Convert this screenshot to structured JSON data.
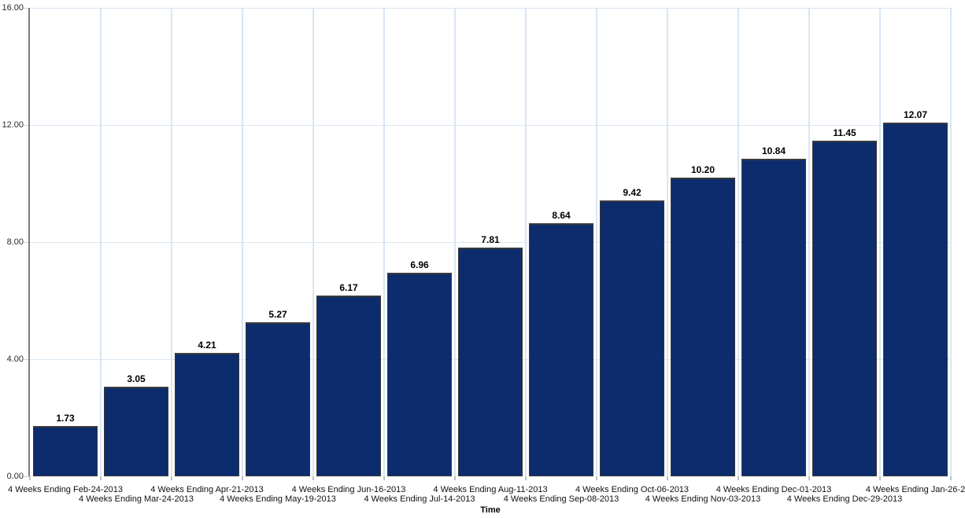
{
  "chart_data": {
    "type": "bar",
    "title": "",
    "xlabel": "Time",
    "ylabel": "",
    "ylim": [
      0,
      16
    ],
    "grid": true,
    "legend": false,
    "y_ticks": [
      "0.00",
      "4.00",
      "8.00",
      "12.00",
      "16.00"
    ],
    "categories": [
      "4 Weeks Ending Feb-24-2013",
      "4 Weeks Ending Mar-24-2013",
      "4 Weeks Ending Apr-21-2013",
      "4 Weeks Ending May-19-2013",
      "4 Weeks Ending Jun-16-2013",
      "4 Weeks Ending Jul-14-2013",
      "4 Weeks Ending Aug-11-2013",
      "4 Weeks Ending Sep-08-2013",
      "4 Weeks Ending Oct-06-2013",
      "4 Weeks Ending Nov-03-2013",
      "4 Weeks Ending Dec-01-2013",
      "4 Weeks Ending Dec-29-2013",
      "4 Weeks Ending Jan-26-2"
    ],
    "values": [
      1.73,
      3.05,
      4.21,
      5.27,
      6.17,
      6.96,
      7.81,
      8.64,
      9.42,
      10.2,
      10.84,
      11.45,
      12.07
    ],
    "value_labels": [
      "1.73",
      "3.05",
      "4.21",
      "5.27",
      "6.17",
      "6.96",
      "7.81",
      "8.64",
      "9.42",
      "10.20",
      "10.84",
      "11.45",
      "12.07"
    ],
    "colors": {
      "bar_fill": "#0c2c6e",
      "bar_border": "#3a3a3a",
      "gridline": "#d9e6f4",
      "axis_line": "#7d7d7d",
      "tick": "#b9c3cd",
      "value_label_text": "#000000",
      "axis_label_text": "#2a2a2a"
    }
  }
}
